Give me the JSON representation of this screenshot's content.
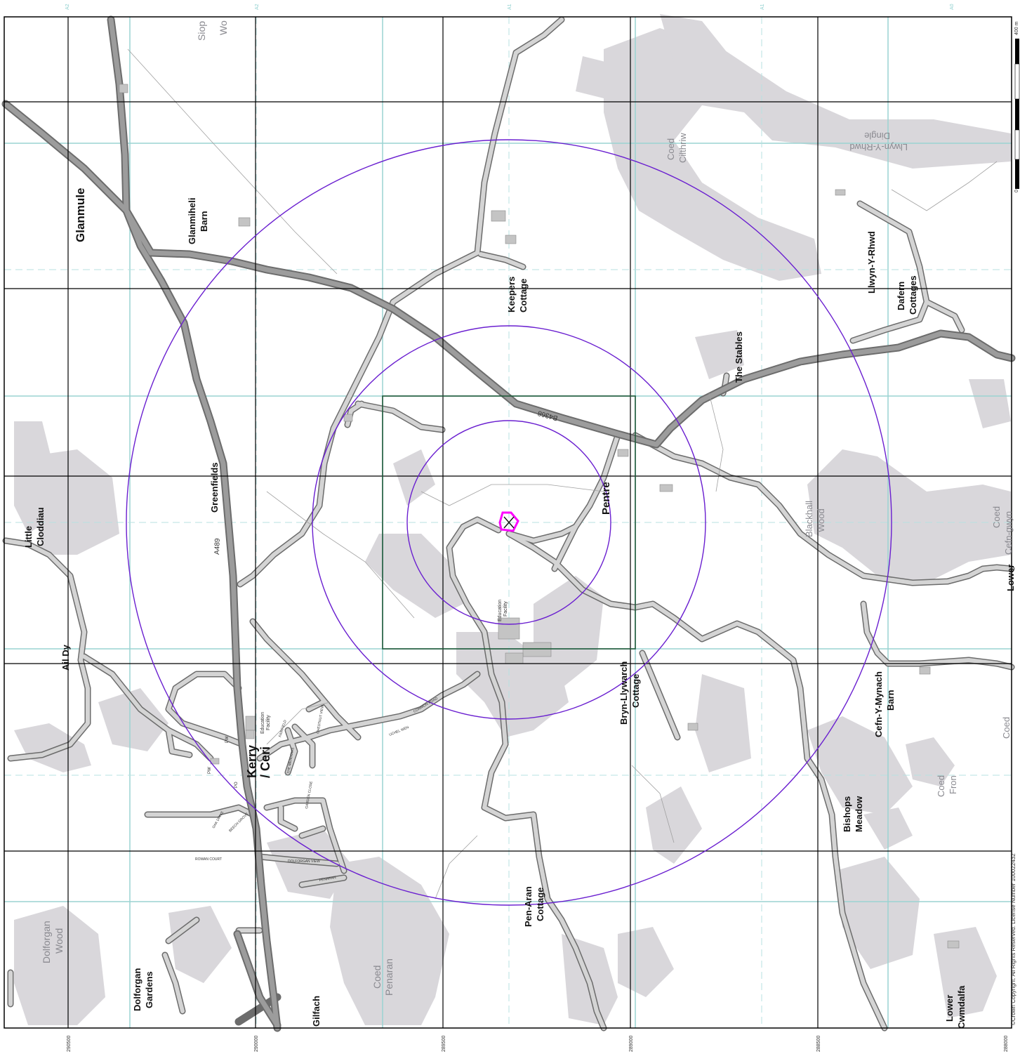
{
  "grid_labels": {
    "bottom": [
      "290500",
      "290000",
      "289500",
      "289000",
      "288500",
      "288000"
    ],
    "top": [
      "A2",
      "A2",
      "A1",
      "A1",
      "A0"
    ]
  },
  "roads": {
    "a489": "A489",
    "b4368": "B4368"
  },
  "places": {
    "glanmule": "Glanmule",
    "glanmihell_barn": [
      "Glanmiheli",
      "Barn"
    ],
    "greenfields": "Greenfields",
    "little_cloddiau": [
      "Little",
      "Cloddiau"
    ],
    "ail_dy": "Ail Dy",
    "kerry": [
      "Kerry",
      "/ Ceri"
    ],
    "keepers_cottage": [
      "Keepers",
      "Cottage"
    ],
    "pentre": "Pentre",
    "the_stables": "The Stables",
    "llwyn_y_rhwd": "Llwyn-Y-Rhwd",
    "dafern_cottages": [
      "Dafern",
      "Cottages"
    ],
    "bryn_llywarch": [
      "Bryn-Llywarch",
      "Cottage"
    ],
    "cefn_y_mynach": [
      "Cefn-Y-Mynach",
      "Barn"
    ],
    "bishops_meadow": [
      "Bishops",
      "Meadow"
    ],
    "pen_aran": [
      "Pen-Aran",
      "Cottage"
    ],
    "dolforgan_gardens": [
      "Dolforgan",
      "Gardens"
    ],
    "gilfach": "Gilfach",
    "lower_cwmdalfa": [
      "Lower",
      "Cwmdalfa"
    ],
    "lower": "Lower",
    "education_facility": [
      "Education",
      "Facility"
    ]
  },
  "woods": {
    "siop_wood": [
      "Siop",
      "Wo"
    ],
    "coed_ciltriw": [
      "Coed",
      "Cilthriw"
    ],
    "llwyn_dingle": [
      "Llwyn-Y-Rhwd",
      "Dingle"
    ],
    "blackhall_wood": [
      "Blackhall",
      "Wood"
    ],
    "coed_cefn_gwyn": [
      "Coed",
      "Cefn-gwyn"
    ],
    "coed": "Coed",
    "coed_fron": [
      "Coed",
      "Fron"
    ],
    "dolforgan_wood": [
      "Dolforgan",
      "Wood"
    ],
    "coed_penaran": [
      "Coed",
      "Penaran"
    ]
  },
  "street_labels": [
    "FAIRFIELD",
    "CHESTNUT VIEW",
    "UCHEL WEN",
    "COMMON ROAD",
    "THE MEADOWS",
    "GARDEN CLOSE",
    "OAK DRIVE",
    "BEECH GROVE",
    "ROWAN COURT",
    "DOLFORGAN VIEW",
    "PENARAN",
    "PW",
    "PW",
    "PO"
  ],
  "scale_bar": {
    "top_label": "400 m",
    "bottom_label": "0"
  },
  "copyright": "©Crown Copyright. All Rights Reserved. License Number 100022432",
  "colors": {
    "buffer_ring": "#6a1fd0",
    "site_marker": "#ff00ff",
    "site_box": "#1f5a3a",
    "grid_black": "#000000",
    "grid_cyan": "#9ad3d2",
    "road_fill": "#d4d4d4",
    "road_casing": "#6c6c6c",
    "b_road_fill": "#9c9c9c",
    "woodland": "#d9d7db"
  }
}
